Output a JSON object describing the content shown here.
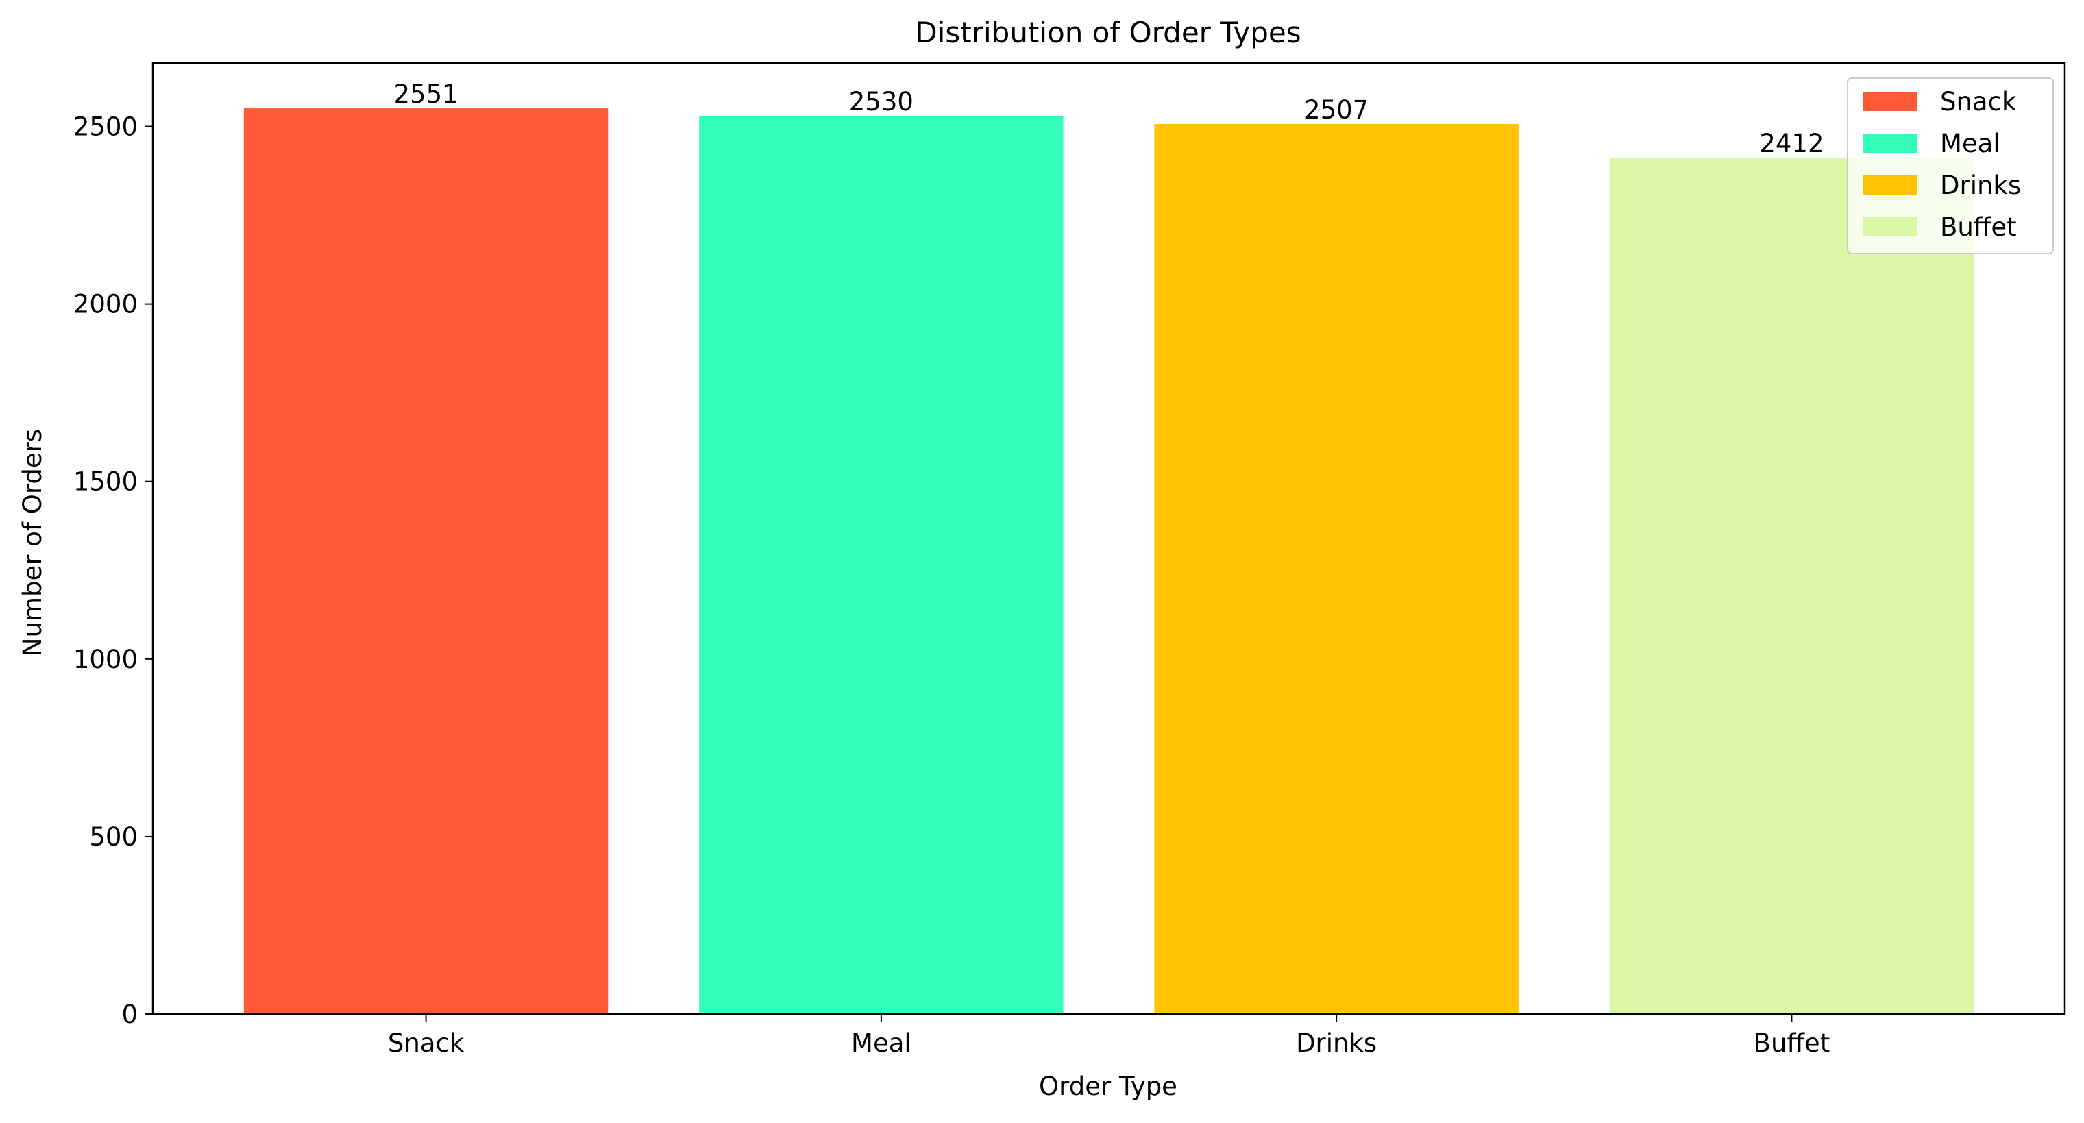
{
  "chart_data": {
    "type": "bar",
    "title": "Distribution of Order Types",
    "xlabel": "Order Type",
    "ylabel": "Number of Orders",
    "categories": [
      "Snack",
      "Meal",
      "Drinks",
      "Buffet"
    ],
    "values": [
      2551,
      2530,
      2507,
      2412
    ],
    "colors": [
      "#ff5a36",
      "#33ffb8",
      "#ffc300",
      "#daf7a6"
    ],
    "ylim": [
      0,
      2678.55
    ],
    "yticks": [
      0,
      500,
      1000,
      1500,
      2000,
      2500
    ],
    "grid": false,
    "legend": {
      "placement": "top-right",
      "entries": [
        "Snack",
        "Meal",
        "Drinks",
        "Buffet"
      ]
    },
    "data_labels": [
      "2551",
      "2530",
      "2507",
      "2412"
    ]
  }
}
